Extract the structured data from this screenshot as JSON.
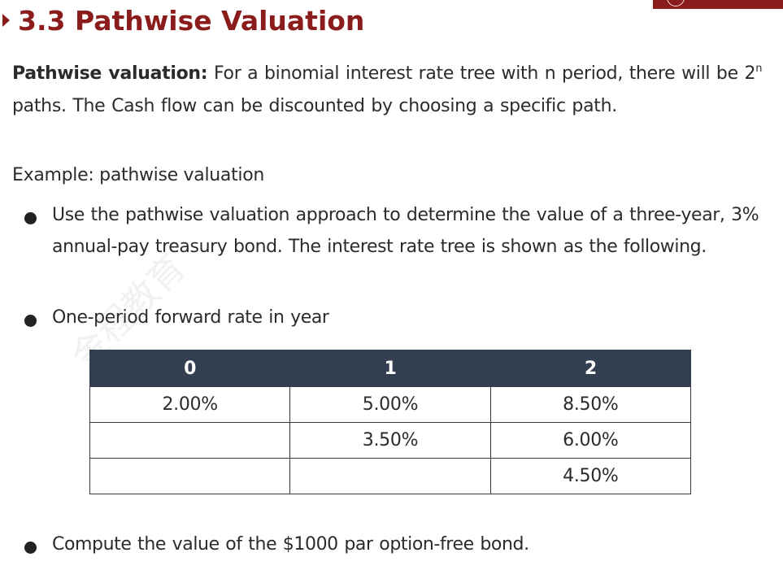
{
  "slide": {
    "title": "3.3 Pathwise Valuation",
    "intro_bold": "Pathwise valuation:",
    "intro_text_1": " For a binomial interest rate tree with n period, there will be 2",
    "intro_sup": "n",
    "intro_text_2": "  paths. The Cash flow can be discounted by choosing a specific path.",
    "example_label": "Example: pathwise valuation"
  },
  "bullets": [
    "Use the pathwise valuation approach to determine the value of a three-year, 3% annual-pay treasury bond. The interest rate tree is shown as the following.",
    "One-period forward rate in year",
    "Compute the value of the $1000 par option-free bond."
  ],
  "rate_table": {
    "headers": [
      "0",
      "1",
      "2"
    ],
    "rows": [
      [
        "2.00%",
        "5.00%",
        "8.50%"
      ],
      [
        "",
        "3.50%",
        "6.00%"
      ],
      [
        "",
        "",
        "4.50%"
      ]
    ]
  },
  "watermark": "金程教育"
}
